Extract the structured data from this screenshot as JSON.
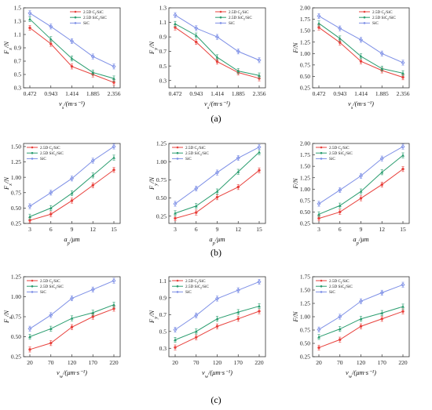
{
  "colors": {
    "c_sic": "#e8413c",
    "sic_sic": "#2a9d6f",
    "sic": "#7d8fe6",
    "axis": "#333333"
  },
  "row_labels": [
    "(a)",
    "(b)",
    "(c)"
  ],
  "chart_data": [
    {
      "type": "line",
      "panel": "a1",
      "xlabel": "vs/(m·s⁻¹)",
      "ylabel": "Fx/N",
      "categories": [
        "0.472",
        "0.943",
        "1.414",
        "1.885",
        "2.356"
      ],
      "ylim": [
        0.3,
        1.5
      ],
      "yticks": [
        "0.3",
        "0.5",
        "0.7",
        "0.9",
        "1.1",
        "1.3",
        "1.5"
      ],
      "legend_position": "top-right",
      "series": [
        {
          "name": "2.5D Cf/SiC",
          "values": [
            1.2,
            0.96,
            0.62,
            0.5,
            0.38
          ]
        },
        {
          "name": "2.5D SiCf/SiC",
          "values": [
            1.33,
            1.03,
            0.74,
            0.53,
            0.44
          ]
        },
        {
          "name": "SiC",
          "values": [
            1.42,
            1.22,
            1.0,
            0.77,
            0.62
          ]
        }
      ]
    },
    {
      "type": "line",
      "panel": "a2",
      "xlabel": "vs/(m·s⁻¹)",
      "ylabel": "Fy/N",
      "categories": [
        "0.472",
        "0.943",
        "1.414",
        "1.885",
        "2.356"
      ],
      "ylim": [
        0.2,
        1.3
      ],
      "yticks": [
        "0.3",
        "0.5",
        "0.7",
        "0.9",
        "1.1",
        "1.3"
      ],
      "legend_position": "top-right",
      "series": [
        {
          "name": "2.5D Cf/SiC",
          "values": [
            1.03,
            0.83,
            0.56,
            0.41,
            0.33
          ]
        },
        {
          "name": "2.5D SiCf/SiC",
          "values": [
            1.08,
            0.92,
            0.62,
            0.43,
            0.37
          ]
        },
        {
          "name": "SiC",
          "values": [
            1.2,
            1.02,
            0.9,
            0.7,
            0.58
          ]
        }
      ]
    },
    {
      "type": "line",
      "panel": "a3",
      "xlabel": "vs/(m·s⁻¹)",
      "ylabel": "F/N",
      "categories": [
        "0.472",
        "0.943",
        "1.414",
        "1.885",
        "2.356"
      ],
      "ylim": [
        0.25,
        2.0
      ],
      "yticks": [
        "0.25",
        "0.50",
        "0.75",
        "1.00",
        "1.25",
        "1.50",
        "1.75",
        "2.00"
      ],
      "legend_position": "top-right",
      "series": [
        {
          "name": "2.5D Cf/SiC",
          "values": [
            1.57,
            1.24,
            0.83,
            0.63,
            0.48
          ]
        },
        {
          "name": "2.5D SiCf/SiC",
          "values": [
            1.66,
            1.33,
            0.94,
            0.67,
            0.57
          ]
        },
        {
          "name": "SiC",
          "values": [
            1.82,
            1.55,
            1.3,
            1.0,
            0.8
          ]
        }
      ]
    },
    {
      "type": "line",
      "panel": "b1",
      "xlabel": "ap/μm",
      "ylabel": "Fx/N",
      "categories": [
        "3",
        "6",
        "9",
        "12",
        "15"
      ],
      "ylim": [
        0.25,
        1.55
      ],
      "yticks": [
        "0.25",
        "0.50",
        "0.75",
        "1.00",
        "1.25",
        "1.50"
      ],
      "legend_position": "top-left",
      "series": [
        {
          "name": "2.5D Cf/SiC",
          "values": [
            0.3,
            0.4,
            0.62,
            0.87,
            1.12
          ]
        },
        {
          "name": "2.5D SiCf/SiC",
          "values": [
            0.36,
            0.5,
            0.74,
            1.03,
            1.32
          ]
        },
        {
          "name": "SiC",
          "values": [
            0.53,
            0.75,
            0.98,
            1.27,
            1.5
          ]
        }
      ]
    },
    {
      "type": "line",
      "panel": "b2",
      "xlabel": "ap/μm",
      "ylabel": "Fy/N",
      "categories": [
        "3",
        "6",
        "9",
        "12",
        "15"
      ],
      "ylim": [
        0.15,
        1.25
      ],
      "yticks": [
        "0.25",
        "0.50",
        "0.75",
        "1.00",
        "1.25"
      ],
      "legend_position": "top-left",
      "series": [
        {
          "name": "2.5D Cf/SiC",
          "values": [
            0.22,
            0.3,
            0.51,
            0.65,
            0.88
          ]
        },
        {
          "name": "2.5D SiCf/SiC",
          "values": [
            0.29,
            0.39,
            0.59,
            0.86,
            1.13
          ]
        },
        {
          "name": "SiC",
          "values": [
            0.42,
            0.63,
            0.85,
            1.05,
            1.2
          ]
        }
      ]
    },
    {
      "type": "line",
      "panel": "b3",
      "xlabel": "ap/μm",
      "ylabel": "F/N",
      "categories": [
        "3",
        "6",
        "9",
        "12",
        "15"
      ],
      "ylim": [
        0.25,
        2.0
      ],
      "yticks": [
        "0.25",
        "0.50",
        "0.75",
        "1.00",
        "1.25",
        "1.50",
        "1.75",
        "2.00"
      ],
      "legend_position": "top-left",
      "series": [
        {
          "name": "2.5D Cf/SiC",
          "values": [
            0.36,
            0.5,
            0.8,
            1.1,
            1.44
          ]
        },
        {
          "name": "2.5D SiCf/SiC",
          "values": [
            0.45,
            0.64,
            0.95,
            1.37,
            1.74
          ]
        },
        {
          "name": "SiC",
          "values": [
            0.68,
            0.98,
            1.29,
            1.67,
            1.93
          ]
        }
      ]
    },
    {
      "type": "line",
      "panel": "c1",
      "xlabel": "vw/(μm·s⁻¹)",
      "ylabel": "Fx/N",
      "categories": [
        "20",
        "70",
        "120",
        "170",
        "220"
      ],
      "ylim": [
        0.25,
        1.25
      ],
      "yticks": [
        "0.25",
        "0.50",
        "0.75",
        "1.00",
        "1.25"
      ],
      "legend_position": "top-left",
      "series": [
        {
          "name": "2.5D Cf/SiC",
          "values": [
            0.34,
            0.42,
            0.62,
            0.75,
            0.85
          ]
        },
        {
          "name": "2.5D SiCf/SiC",
          "values": [
            0.5,
            0.6,
            0.73,
            0.8,
            0.9
          ]
        },
        {
          "name": "SiC",
          "values": [
            0.6,
            0.77,
            0.98,
            1.09,
            1.2
          ]
        }
      ]
    },
    {
      "type": "line",
      "panel": "c2",
      "xlabel": "vw/(μm·s⁻¹)",
      "ylabel": "Fy/N",
      "categories": [
        "20",
        "70",
        "120",
        "170",
        "220"
      ],
      "ylim": [
        0.2,
        1.15
      ],
      "yticks": [
        "0.3",
        "0.5",
        "0.7",
        "0.9",
        "1.1"
      ],
      "legend_position": "top-left",
      "series": [
        {
          "name": "2.5D Cf/SiC",
          "values": [
            0.31,
            0.43,
            0.56,
            0.65,
            0.74
          ]
        },
        {
          "name": "2.5D SiCf/SiC",
          "values": [
            0.4,
            0.5,
            0.65,
            0.73,
            0.8
          ]
        },
        {
          "name": "SiC",
          "values": [
            0.52,
            0.69,
            0.89,
            0.99,
            1.09
          ]
        }
      ]
    },
    {
      "type": "line",
      "panel": "c3",
      "xlabel": "vw/(μm·s⁻¹)",
      "ylabel": "F/N",
      "categories": [
        "20",
        "70",
        "120",
        "170",
        "220"
      ],
      "ylim": [
        0.25,
        1.75
      ],
      "yticks": [
        "0.25",
        "0.50",
        "0.75",
        "1.00",
        "1.25",
        "1.50",
        "1.75"
      ],
      "legend_position": "top-left",
      "series": [
        {
          "name": "2.5D Cf/SiC",
          "values": [
            0.42,
            0.57,
            0.82,
            0.96,
            1.1
          ]
        },
        {
          "name": "2.5D SiCf/SiC",
          "values": [
            0.62,
            0.77,
            0.96,
            1.07,
            1.19
          ]
        },
        {
          "name": "SiC",
          "values": [
            0.76,
            1.0,
            1.29,
            1.45,
            1.6
          ]
        }
      ]
    }
  ]
}
